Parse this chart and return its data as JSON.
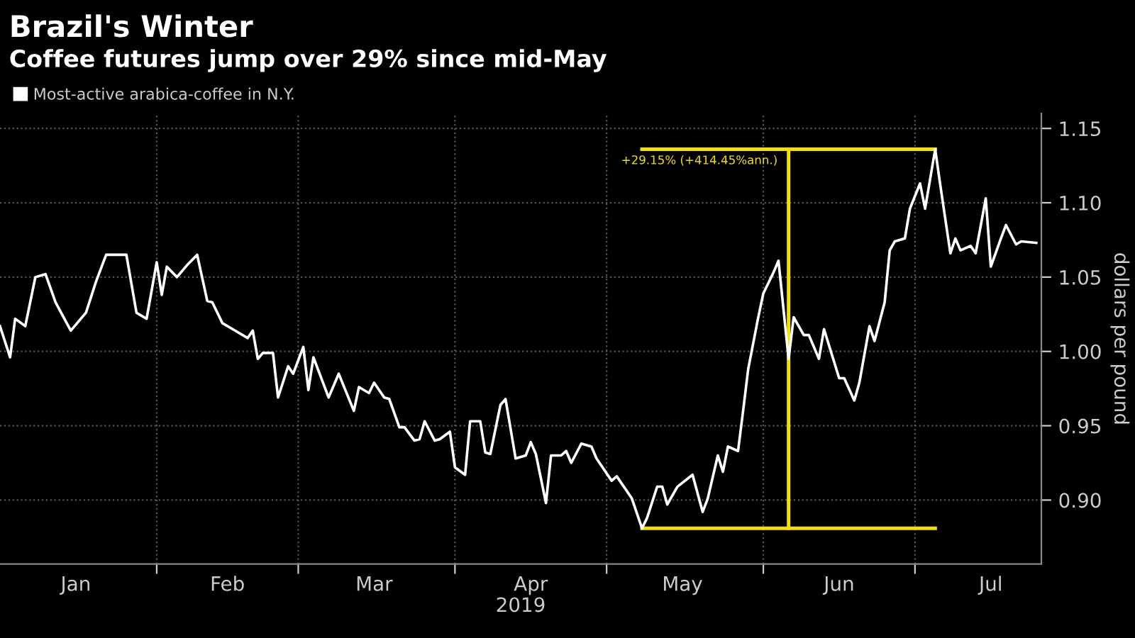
{
  "chart_data": {
    "type": "line",
    "title": "Brazil's Winter",
    "subtitle": "Coffee futures jump over 29% since mid-May",
    "xlabel": "2019",
    "ylabel": "dollars per pound",
    "x": [
      "2019-01-01",
      "2019-01-03",
      "2019-01-04",
      "2019-01-06",
      "2019-01-08",
      "2019-01-10",
      "2019-01-12",
      "2019-01-15",
      "2019-01-18",
      "2019-01-20",
      "2019-01-22",
      "2019-01-26",
      "2019-01-28",
      "2019-01-30",
      "2019-02-01",
      "2019-02-02",
      "2019-02-03",
      "2019-02-05",
      "2019-02-07",
      "2019-02-09",
      "2019-02-11",
      "2019-02-12",
      "2019-02-14",
      "2019-02-16",
      "2019-02-19",
      "2019-02-20",
      "2019-02-21",
      "2019-02-22",
      "2019-02-24",
      "2019-02-25",
      "2019-02-27",
      "2019-02-28",
      "2019-03-02",
      "2019-03-03",
      "2019-03-04",
      "2019-03-07",
      "2019-03-09",
      "2019-03-12",
      "2019-03-13",
      "2019-03-15",
      "2019-03-16",
      "2019-03-18",
      "2019-03-19",
      "2019-03-21",
      "2019-03-22",
      "2019-03-24",
      "2019-03-25",
      "2019-03-26",
      "2019-03-28",
      "2019-03-29",
      "2019-03-31",
      "2019-04-01",
      "2019-04-03",
      "2019-04-04",
      "2019-04-06",
      "2019-04-07",
      "2019-04-08",
      "2019-04-10",
      "2019-04-11",
      "2019-04-13",
      "2019-04-15",
      "2019-04-16",
      "2019-04-17",
      "2019-04-19",
      "2019-04-20",
      "2019-04-22",
      "2019-04-23",
      "2019-04-24",
      "2019-04-26",
      "2019-04-28",
      "2019-04-29",
      "2019-05-02",
      "2019-05-03",
      "2019-05-05",
      "2019-05-06",
      "2019-05-08",
      "2019-05-09",
      "2019-05-11",
      "2019-05-12",
      "2019-05-13",
      "2019-05-15",
      "2019-05-18",
      "2019-05-20",
      "2019-05-21",
      "2019-05-23",
      "2019-05-24",
      "2019-05-25",
      "2019-05-27",
      "2019-05-28",
      "2019-05-29",
      "2019-05-31",
      "2019-06-01",
      "2019-06-03",
      "2019-06-04",
      "2019-06-06",
      "2019-06-07",
      "2019-06-09",
      "2019-06-10",
      "2019-06-12",
      "2019-06-13",
      "2019-06-16",
      "2019-06-17",
      "2019-06-19",
      "2019-06-20",
      "2019-06-22",
      "2019-06-23",
      "2019-06-25",
      "2019-06-26",
      "2019-06-27",
      "2019-06-29",
      "2019-06-30",
      "2019-07-02",
      "2019-07-03",
      "2019-07-05",
      "2019-07-06",
      "2019-07-08",
      "2019-07-09",
      "2019-07-10",
      "2019-07-12",
      "2019-07-13",
      "2019-07-15",
      "2019-07-16",
      "2019-07-18",
      "2019-07-19",
      "2019-07-21",
      "2019-07-22",
      "2019-07-25"
    ],
    "series": [
      {
        "name": "Most-active arabica-coffee in N.Y.",
        "color": "#ffffff",
        "values": [
          1.017,
          0.996,
          1.022,
          1.017,
          1.05,
          1.052,
          1.033,
          1.014,
          1.026,
          1.047,
          1.065,
          1.065,
          1.026,
          1.022,
          1.06,
          1.038,
          1.057,
          1.05,
          1.058,
          1.065,
          1.034,
          1.033,
          1.019,
          1.015,
          1.009,
          1.014,
          0.995,
          0.999,
          0.999,
          0.969,
          0.99,
          0.985,
          1.003,
          0.974,
          0.996,
          0.969,
          0.985,
          0.96,
          0.976,
          0.972,
          0.979,
          0.969,
          0.968,
          0.949,
          0.949,
          0.94,
          0.941,
          0.953,
          0.94,
          0.941,
          0.946,
          0.922,
          0.917,
          0.953,
          0.953,
          0.932,
          0.931,
          0.964,
          0.968,
          0.928,
          0.93,
          0.939,
          0.931,
          0.898,
          0.93,
          0.93,
          0.933,
          0.925,
          0.938,
          0.936,
          0.928,
          0.913,
          0.916,
          0.906,
          0.901,
          0.881,
          0.888,
          0.909,
          0.909,
          0.897,
          0.909,
          0.917,
          0.892,
          0.901,
          0.93,
          0.919,
          0.936,
          0.933,
          0.96,
          0.988,
          1.023,
          1.039,
          1.053,
          1.061,
          0.995,
          1.023,
          1.011,
          1.011,
          0.995,
          1.015,
          0.982,
          0.982,
          0.967,
          0.979,
          1.017,
          1.007,
          1.033,
          1.068,
          1.074,
          1.076,
          1.096,
          1.113,
          1.096,
          1.136,
          1.112,
          1.066,
          1.076,
          1.068,
          1.071,
          1.066,
          1.103,
          1.057,
          1.076,
          1.085,
          1.072,
          1.074,
          1.073
        ]
      },
      {
        "type": "line",
        "color": "#f5e100",
        "x": [
          "2019-05-08",
          "2019-07-05"
        ],
        "values": [
          0.881,
          0.881
        ]
      },
      {
        "type": "line",
        "color": "#f5e100",
        "x": [
          "2019-06-06",
          "2019-06-06"
        ],
        "values": [
          0.881,
          1.136
        ]
      },
      {
        "type": "line",
        "color": "#f5e100",
        "x": [
          "2019-05-08",
          "2019-07-05"
        ],
        "values": [
          1.136,
          1.136
        ]
      }
    ],
    "annotations": [
      {
        "text": "+29.15% (+414.45%ann.)",
        "x": "2019-06-05",
        "y": 1.136
      }
    ],
    "xlim": [
      "2019-01-01",
      "2019-07-26"
    ],
    "xticks": [
      {
        "value": "2019-01-16",
        "label": "Jan"
      },
      {
        "value": "2019-02-01",
        "label": null
      },
      {
        "value": "2019-02-15",
        "label": "Feb"
      },
      {
        "value": "2019-03-01",
        "label": null
      },
      {
        "value": "2019-03-16",
        "label": "Mar"
      },
      {
        "value": "2019-04-01",
        "label": null
      },
      {
        "value": "2019-04-16",
        "label": "Apr"
      },
      {
        "value": "2019-05-01",
        "label": null
      },
      {
        "value": "2019-05-16",
        "label": "May"
      },
      {
        "value": "2019-06-01",
        "label": null
      },
      {
        "value": "2019-06-16",
        "label": "Jun"
      },
      {
        "value": "2019-07-01",
        "label": null
      },
      {
        "value": "2019-07-16",
        "label": "Jul"
      }
    ],
    "ylim": [
      0.857,
      1.16
    ],
    "yticks": [
      {
        "value": 0.9,
        "label": "0.90"
      },
      {
        "value": 0.95,
        "label": "0.95"
      },
      {
        "value": 1.0,
        "label": "1.00"
      },
      {
        "value": 1.05,
        "label": "1.05"
      },
      {
        "value": 1.1,
        "label": "1.10"
      },
      {
        "value": 1.15,
        "label": "1.15"
      }
    ],
    "grid": true,
    "legend": "top left"
  }
}
